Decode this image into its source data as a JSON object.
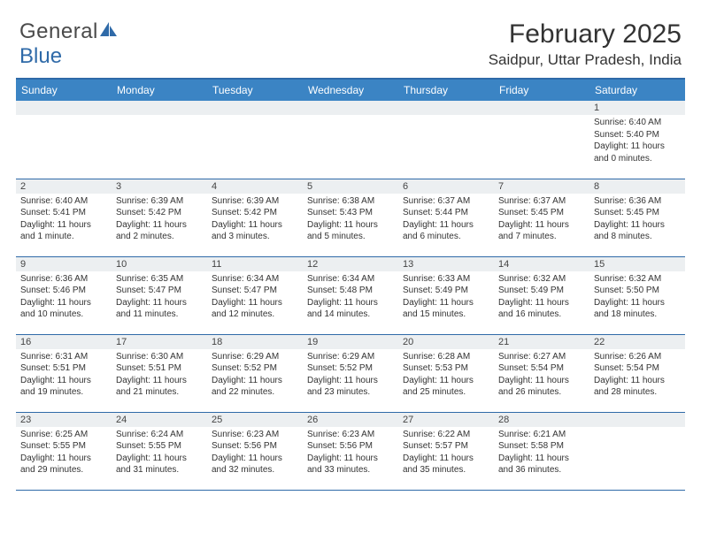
{
  "logo": {
    "text1": "General",
    "text2": "Blue"
  },
  "title": "February 2025",
  "location": "Saidpur, Uttar Pradesh, India",
  "colors": {
    "header_bar": "#3b84c4",
    "rule": "#2f6aa8",
    "daynum_bg": "#eceff1",
    "text": "#333333",
    "logo_gray": "#4a4a4a",
    "logo_blue": "#2f6aa8"
  },
  "fonts": {
    "title_pt": 30,
    "location_pt": 17,
    "dayhdr_pt": 12,
    "cell_pt": 10
  },
  "day_headers": [
    "Sunday",
    "Monday",
    "Tuesday",
    "Wednesday",
    "Thursday",
    "Friday",
    "Saturday"
  ],
  "weeks": [
    [
      null,
      null,
      null,
      null,
      null,
      null,
      {
        "n": "1",
        "sunrise": "6:40 AM",
        "sunset": "5:40 PM",
        "daylight": "11 hours and 0 minutes."
      }
    ],
    [
      {
        "n": "2",
        "sunrise": "6:40 AM",
        "sunset": "5:41 PM",
        "daylight": "11 hours and 1 minute."
      },
      {
        "n": "3",
        "sunrise": "6:39 AM",
        "sunset": "5:42 PM",
        "daylight": "11 hours and 2 minutes."
      },
      {
        "n": "4",
        "sunrise": "6:39 AM",
        "sunset": "5:42 PM",
        "daylight": "11 hours and 3 minutes."
      },
      {
        "n": "5",
        "sunrise": "6:38 AM",
        "sunset": "5:43 PM",
        "daylight": "11 hours and 5 minutes."
      },
      {
        "n": "6",
        "sunrise": "6:37 AM",
        "sunset": "5:44 PM",
        "daylight": "11 hours and 6 minutes."
      },
      {
        "n": "7",
        "sunrise": "6:37 AM",
        "sunset": "5:45 PM",
        "daylight": "11 hours and 7 minutes."
      },
      {
        "n": "8",
        "sunrise": "6:36 AM",
        "sunset": "5:45 PM",
        "daylight": "11 hours and 8 minutes."
      }
    ],
    [
      {
        "n": "9",
        "sunrise": "6:36 AM",
        "sunset": "5:46 PM",
        "daylight": "11 hours and 10 minutes."
      },
      {
        "n": "10",
        "sunrise": "6:35 AM",
        "sunset": "5:47 PM",
        "daylight": "11 hours and 11 minutes."
      },
      {
        "n": "11",
        "sunrise": "6:34 AM",
        "sunset": "5:47 PM",
        "daylight": "11 hours and 12 minutes."
      },
      {
        "n": "12",
        "sunrise": "6:34 AM",
        "sunset": "5:48 PM",
        "daylight": "11 hours and 14 minutes."
      },
      {
        "n": "13",
        "sunrise": "6:33 AM",
        "sunset": "5:49 PM",
        "daylight": "11 hours and 15 minutes."
      },
      {
        "n": "14",
        "sunrise": "6:32 AM",
        "sunset": "5:49 PM",
        "daylight": "11 hours and 16 minutes."
      },
      {
        "n": "15",
        "sunrise": "6:32 AM",
        "sunset": "5:50 PM",
        "daylight": "11 hours and 18 minutes."
      }
    ],
    [
      {
        "n": "16",
        "sunrise": "6:31 AM",
        "sunset": "5:51 PM",
        "daylight": "11 hours and 19 minutes."
      },
      {
        "n": "17",
        "sunrise": "6:30 AM",
        "sunset": "5:51 PM",
        "daylight": "11 hours and 21 minutes."
      },
      {
        "n": "18",
        "sunrise": "6:29 AM",
        "sunset": "5:52 PM",
        "daylight": "11 hours and 22 minutes."
      },
      {
        "n": "19",
        "sunrise": "6:29 AM",
        "sunset": "5:52 PM",
        "daylight": "11 hours and 23 minutes."
      },
      {
        "n": "20",
        "sunrise": "6:28 AM",
        "sunset": "5:53 PM",
        "daylight": "11 hours and 25 minutes."
      },
      {
        "n": "21",
        "sunrise": "6:27 AM",
        "sunset": "5:54 PM",
        "daylight": "11 hours and 26 minutes."
      },
      {
        "n": "22",
        "sunrise": "6:26 AM",
        "sunset": "5:54 PM",
        "daylight": "11 hours and 28 minutes."
      }
    ],
    [
      {
        "n": "23",
        "sunrise": "6:25 AM",
        "sunset": "5:55 PM",
        "daylight": "11 hours and 29 minutes."
      },
      {
        "n": "24",
        "sunrise": "6:24 AM",
        "sunset": "5:55 PM",
        "daylight": "11 hours and 31 minutes."
      },
      {
        "n": "25",
        "sunrise": "6:23 AM",
        "sunset": "5:56 PM",
        "daylight": "11 hours and 32 minutes."
      },
      {
        "n": "26",
        "sunrise": "6:23 AM",
        "sunset": "5:56 PM",
        "daylight": "11 hours and 33 minutes."
      },
      {
        "n": "27",
        "sunrise": "6:22 AM",
        "sunset": "5:57 PM",
        "daylight": "11 hours and 35 minutes."
      },
      {
        "n": "28",
        "sunrise": "6:21 AM",
        "sunset": "5:58 PM",
        "daylight": "11 hours and 36 minutes."
      },
      null
    ]
  ],
  "labels": {
    "sunrise": "Sunrise: ",
    "sunset": "Sunset: ",
    "daylight": "Daylight: "
  }
}
